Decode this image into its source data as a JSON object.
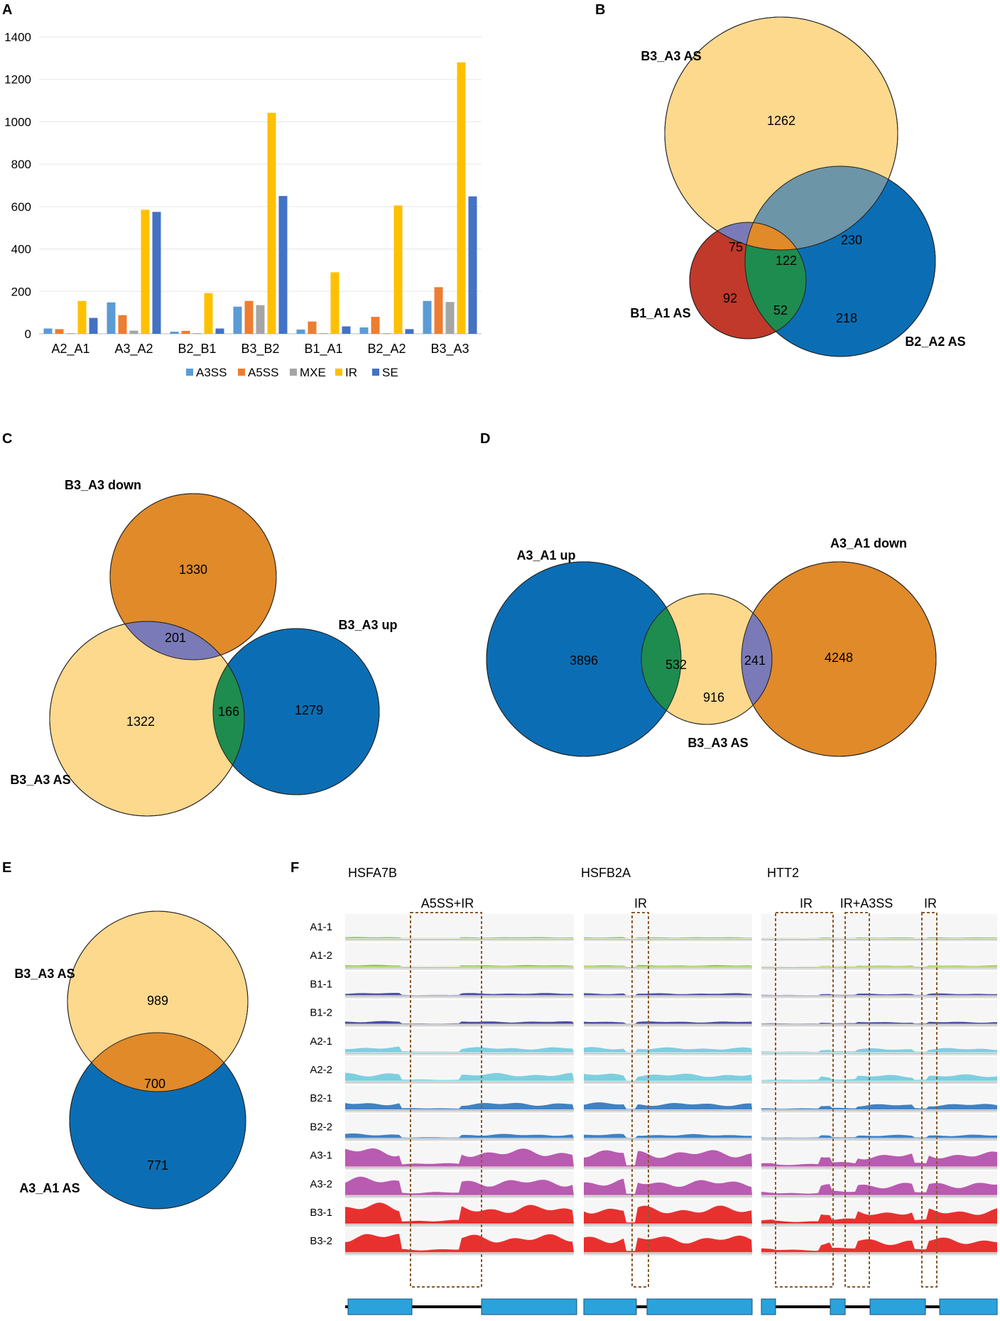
{
  "panel_letters": {
    "a": "A",
    "b": "B",
    "c": "C",
    "d": "D",
    "e": "E",
    "f": "F"
  },
  "colors": {
    "A3SS": "#5b9bd5",
    "A5SS": "#ed7d31",
    "MXE": "#a5a5a5",
    "IR": "#ffc000",
    "SE": "#4472c4",
    "light_yellow": "#fdd98e",
    "orange": "#e08a2a",
    "blue": "#0b6eb4",
    "red": "#c0392b",
    "purple": "#7a7ab8",
    "green": "#1e8c4e",
    "slate": "#6c95a8",
    "track_green": "#8cc63f",
    "track_navy": "#4a4ea3",
    "track_cyan": "#7dcfe0",
    "track_steel": "#3f82c4",
    "track_magenta": "#b95bb0",
    "track_red": "#e8312f",
    "gene_blue": "#2aa3dc"
  },
  "chart_data": {
    "type": "bar",
    "categories": [
      "A2_A1",
      "A3_A2",
      "B2_B1",
      "B3_B2",
      "B1_A1",
      "B2_A2",
      "B3_A3"
    ],
    "series": [
      {
        "name": "A3SS",
        "values": [
          25,
          148,
          10,
          128,
          20,
          30,
          155
        ]
      },
      {
        "name": "A5SS",
        "values": [
          22,
          88,
          14,
          155,
          58,
          80,
          220
        ]
      },
      {
        "name": "MXE",
        "values": [
          3,
          15,
          3,
          135,
          3,
          3,
          150
        ]
      },
      {
        "name": "IR",
        "values": [
          155,
          585,
          192,
          1042,
          290,
          605,
          1280
        ]
      },
      {
        "name": "SE",
        "values": [
          75,
          575,
          25,
          650,
          35,
          22,
          648
        ]
      }
    ],
    "ylim": [
      0,
      1400
    ],
    "yticks": [
      0,
      200,
      400,
      600,
      800,
      1000,
      1200,
      1400
    ],
    "title": "",
    "xlabel": "",
    "ylabel": "",
    "legend_position": "bottom"
  },
  "venn_b": {
    "labels": {
      "b3a3": "B3_A3 AS",
      "b1a1": "B1_A1 AS",
      "b2a2": "B2_A2 AS"
    },
    "counts": {
      "b3a3_only": "1262",
      "b3a3_b1a1": "75",
      "all_three": "122",
      "b3a3_b2a2": "230",
      "b1a1_only": "92",
      "b1a1_b2a2": "52",
      "b2a2_only": "218"
    }
  },
  "venn_c": {
    "labels": {
      "down": "B3_A3 down",
      "up": "B3_A3 up",
      "as": "B3_A3 AS"
    },
    "counts": {
      "down_only": "1330",
      "down_as": "201",
      "as_only": "1322",
      "as_up": "166",
      "up_only": "1279"
    }
  },
  "venn_d": {
    "labels": {
      "up": "A3_A1 up",
      "down": "A3_A1 down",
      "as": "B3_A3 AS"
    },
    "counts": {
      "up_only": "3896",
      "up_as": "532",
      "as_only": "916",
      "as_down": "241",
      "down_only": "4248"
    }
  },
  "venn_e": {
    "labels": {
      "top": "B3_A3 AS",
      "bottom": "A3_A1 AS"
    },
    "counts": {
      "top_only": "989",
      "both": "700",
      "bottom_only": "771"
    }
  },
  "panel_f": {
    "genes": [
      "HSFA7B",
      "HSFB2A",
      "HTT2"
    ],
    "events": [
      "A5SS+IR",
      "IR",
      "IR",
      "IR+A3SS",
      "IR"
    ],
    "samples": [
      "A1-1",
      "A1-2",
      "B1-1",
      "B1-2",
      "A2-1",
      "A2-2",
      "B2-1",
      "B2-2",
      "A3-1",
      "A3-2",
      "B3-1",
      "B3-2"
    ]
  }
}
